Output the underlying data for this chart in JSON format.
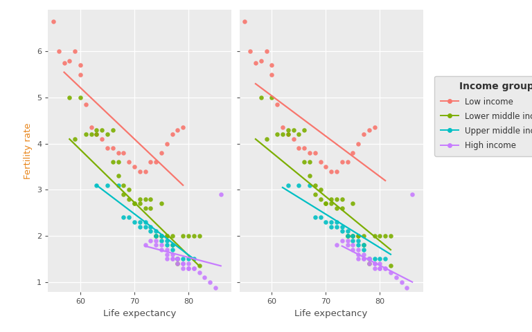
{
  "xlabel": "Life expectancy",
  "ylabel": "Fertility rate",
  "legend_title": "Income group",
  "legend_entries": [
    "Low income",
    "Lower middle income",
    "Upper middle income",
    "High income"
  ],
  "colors": [
    "#F8766D",
    "#7CAE00",
    "#00BFC4",
    "#C77CFF"
  ],
  "xlim": [
    54,
    88
  ],
  "ylim": [
    0.78,
    6.9
  ],
  "yticks": [
    1,
    2,
    3,
    4,
    5,
    6
  ],
  "xticks": [
    60,
    70,
    80
  ],
  "bg_color": "#EBEBEB",
  "grid_color": "white",
  "point_size": 22,
  "point_alpha": 0.9,
  "low_income_x": [
    55,
    56,
    57,
    58,
    59,
    60,
    60,
    61,
    62,
    63,
    64,
    65,
    66,
    67,
    68,
    69,
    70,
    71,
    72,
    73,
    74,
    75,
    76,
    77,
    78,
    79
  ],
  "low_income_y": [
    6.65,
    6.0,
    5.75,
    5.8,
    6.0,
    5.7,
    5.5,
    4.85,
    4.35,
    4.2,
    4.1,
    3.9,
    3.9,
    3.8,
    3.8,
    3.6,
    3.5,
    3.4,
    3.4,
    3.6,
    3.6,
    3.8,
    4.0,
    4.2,
    4.3,
    4.35
  ],
  "lower_mid_x": [
    58,
    59,
    60,
    61,
    62,
    63,
    63,
    64,
    65,
    66,
    66,
    67,
    67,
    68,
    68,
    69,
    69,
    70,
    70,
    71,
    71,
    72,
    72,
    73,
    73,
    74,
    74,
    75,
    75,
    75,
    76,
    76,
    77,
    77,
    78,
    78,
    79,
    80,
    81,
    82,
    82
  ],
  "lower_mid_y": [
    5.0,
    4.1,
    5.0,
    4.2,
    4.2,
    4.2,
    4.3,
    4.3,
    4.2,
    4.3,
    3.6,
    3.6,
    3.3,
    3.1,
    2.9,
    3.0,
    2.8,
    2.7,
    2.7,
    2.8,
    2.7,
    2.6,
    2.8,
    2.8,
    2.6,
    2.0,
    2.0,
    2.0,
    2.0,
    2.7,
    2.0,
    2.0,
    1.8,
    2.0,
    1.4,
    1.5,
    2.0,
    2.0,
    2.0,
    2.0,
    1.35
  ],
  "upper_mid_x": [
    63,
    65,
    67,
    68,
    69,
    70,
    71,
    71,
    72,
    72,
    73,
    73,
    74,
    74,
    75,
    75,
    76,
    76,
    77,
    77,
    78,
    79,
    80,
    81
  ],
  "upper_mid_y": [
    3.1,
    3.1,
    3.1,
    2.4,
    2.4,
    2.3,
    2.3,
    2.2,
    2.3,
    2.2,
    2.2,
    2.1,
    2.1,
    2.0,
    2.0,
    1.9,
    1.9,
    1.8,
    1.8,
    1.7,
    1.5,
    1.5,
    1.5,
    1.5
  ],
  "high_income_x": [
    72,
    73,
    74,
    74,
    75,
    75,
    76,
    76,
    76,
    77,
    77,
    77,
    78,
    78,
    78,
    79,
    79,
    79,
    80,
    80,
    80,
    81,
    81,
    82,
    83,
    84,
    85,
    86
  ],
  "high_income_y": [
    1.8,
    1.9,
    1.9,
    1.8,
    1.8,
    1.7,
    1.7,
    1.6,
    1.5,
    1.6,
    1.5,
    1.5,
    1.5,
    1.5,
    1.4,
    1.4,
    1.4,
    1.3,
    1.4,
    1.3,
    1.3,
    1.3,
    1.3,
    1.2,
    1.1,
    1.0,
    0.88,
    2.9
  ],
  "interact_lines": [
    {
      "x": [
        57,
        79
      ],
      "y": [
        5.55,
        3.1
      ]
    },
    {
      "x": [
        58,
        82
      ],
      "y": [
        4.1,
        1.35
      ]
    },
    {
      "x": [
        63,
        81
      ],
      "y": [
        3.1,
        1.5
      ]
    },
    {
      "x": [
        72,
        86
      ],
      "y": [
        1.78,
        1.35
      ]
    }
  ],
  "parallel_lines": [
    {
      "x": [
        57,
        81
      ],
      "y": [
        5.3,
        3.2
      ]
    },
    {
      "x": [
        57,
        82
      ],
      "y": [
        4.1,
        1.7
      ]
    },
    {
      "x": [
        62,
        82
      ],
      "y": [
        3.05,
        1.6
      ]
    },
    {
      "x": [
        73,
        86
      ],
      "y": [
        1.78,
        1.0
      ]
    }
  ]
}
